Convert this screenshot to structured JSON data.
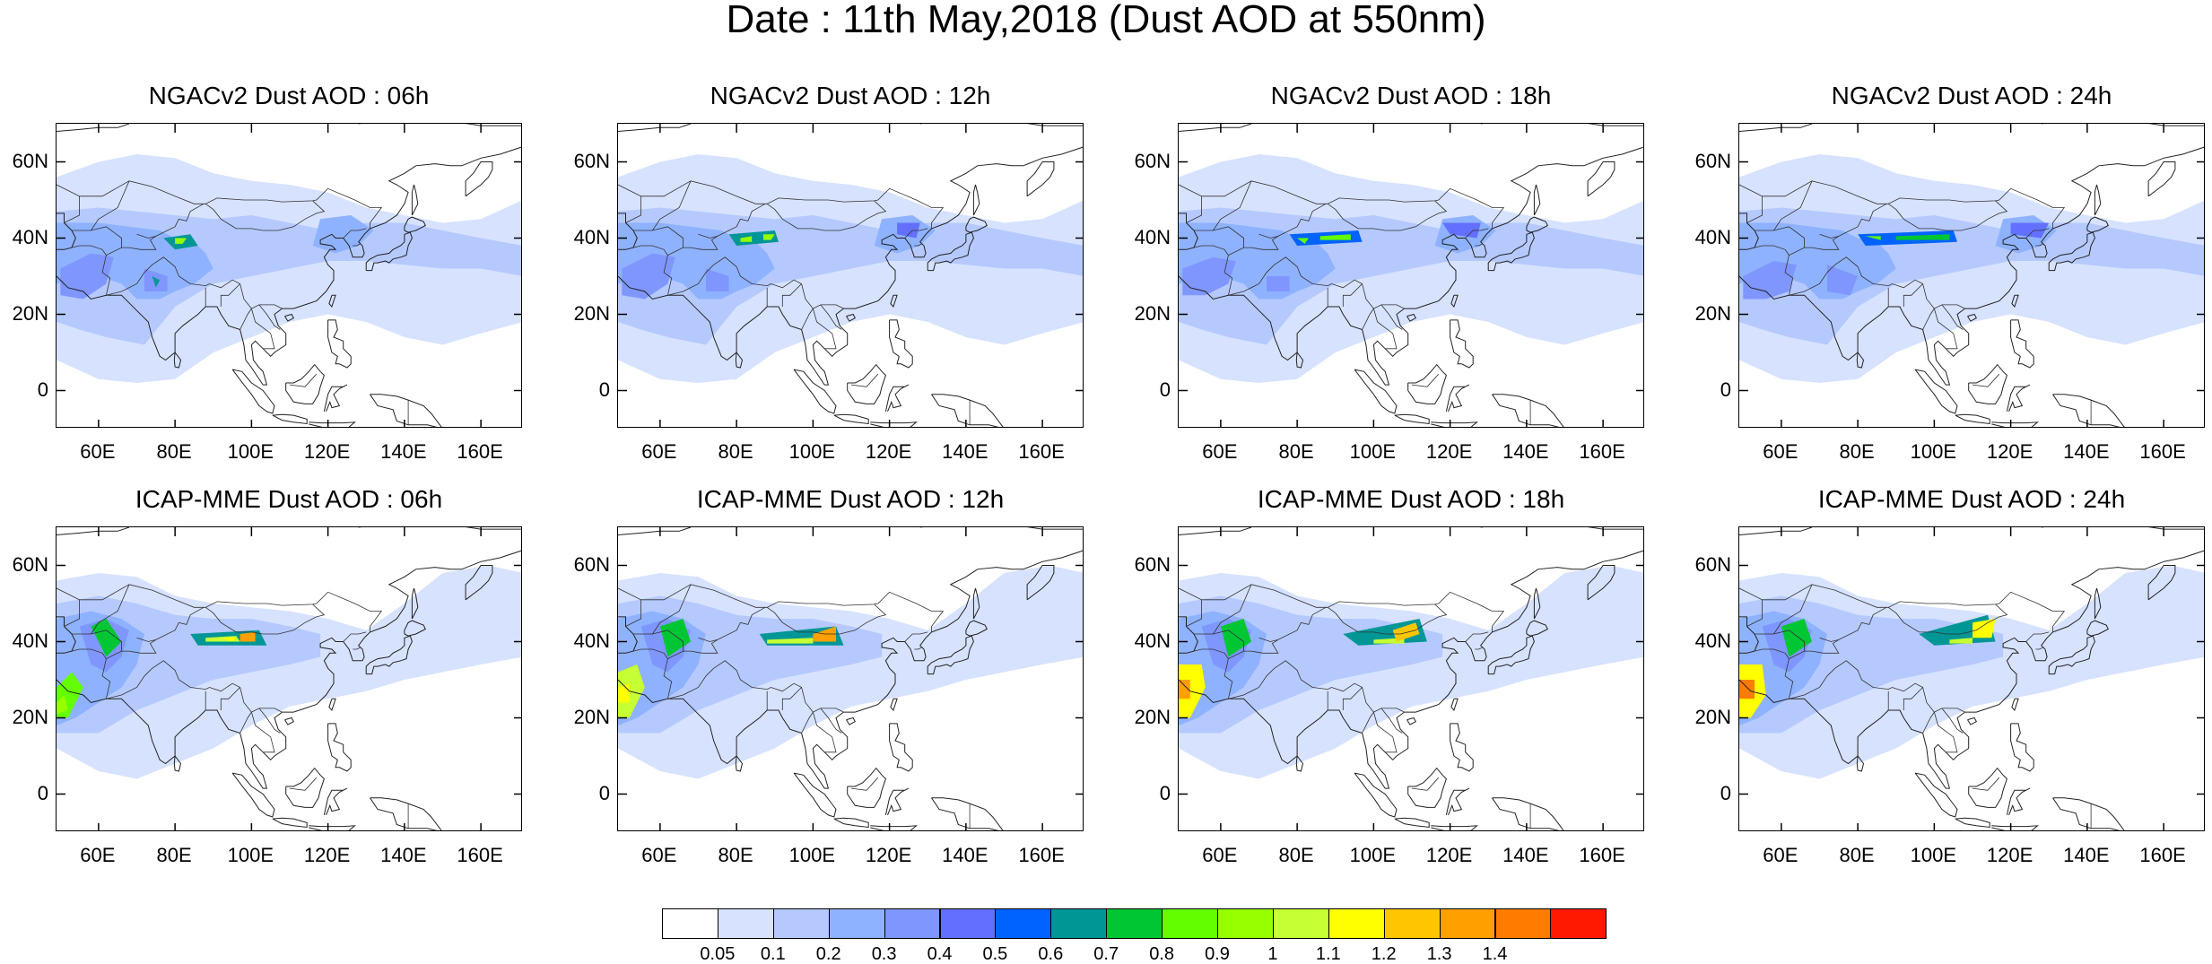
{
  "title": "Date : 11th May,2018 (Dust AOD at 550nm)",
  "axes": {
    "y_labels": [
      "60N",
      "40N",
      "20N",
      "0"
    ],
    "x_labels": [
      "60E",
      "80E",
      "100E",
      "120E",
      "140E",
      "160E"
    ]
  },
  "panels": [
    {
      "title": "NGACv2 Dust AOD : 06h",
      "model": "NGACv2",
      "hour": "06h"
    },
    {
      "title": "NGACv2 Dust AOD : 12h",
      "model": "NGACv2",
      "hour": "12h"
    },
    {
      "title": "NGACv2 Dust AOD : 18h",
      "model": "NGACv2",
      "hour": "18h"
    },
    {
      "title": "NGACv2 Dust AOD : 24h",
      "model": "NGACv2",
      "hour": "24h"
    },
    {
      "title": "ICAP-MME Dust AOD : 06h",
      "model": "ICAP-MME",
      "hour": "06h"
    },
    {
      "title": "ICAP-MME Dust AOD : 12h",
      "model": "ICAP-MME",
      "hour": "12h"
    },
    {
      "title": "ICAP-MME Dust AOD : 18h",
      "model": "ICAP-MME",
      "hour": "18h"
    },
    {
      "title": "ICAP-MME Dust AOD : 24h",
      "model": "ICAP-MME",
      "hour": "24h"
    }
  ],
  "colorbar": {
    "colors": [
      "#ffffff",
      "#d6e2ff",
      "#b5c9ff",
      "#8eb2ff",
      "#7f96ff",
      "#6370ff",
      "#0063ff",
      "#009696",
      "#00c633",
      "#63ff00",
      "#96ff00",
      "#c6ff33",
      "#ffff00",
      "#ffc600",
      "#ffa000",
      "#ff7c00",
      "#ff1900"
    ],
    "labels": [
      "0.05",
      "0.1",
      "0.2",
      "0.3",
      "0.4",
      "0.5",
      "0.6",
      "0.7",
      "0.8",
      "0.9",
      "1",
      "1.1",
      "1.2",
      "1.3",
      "1.4"
    ]
  }
}
